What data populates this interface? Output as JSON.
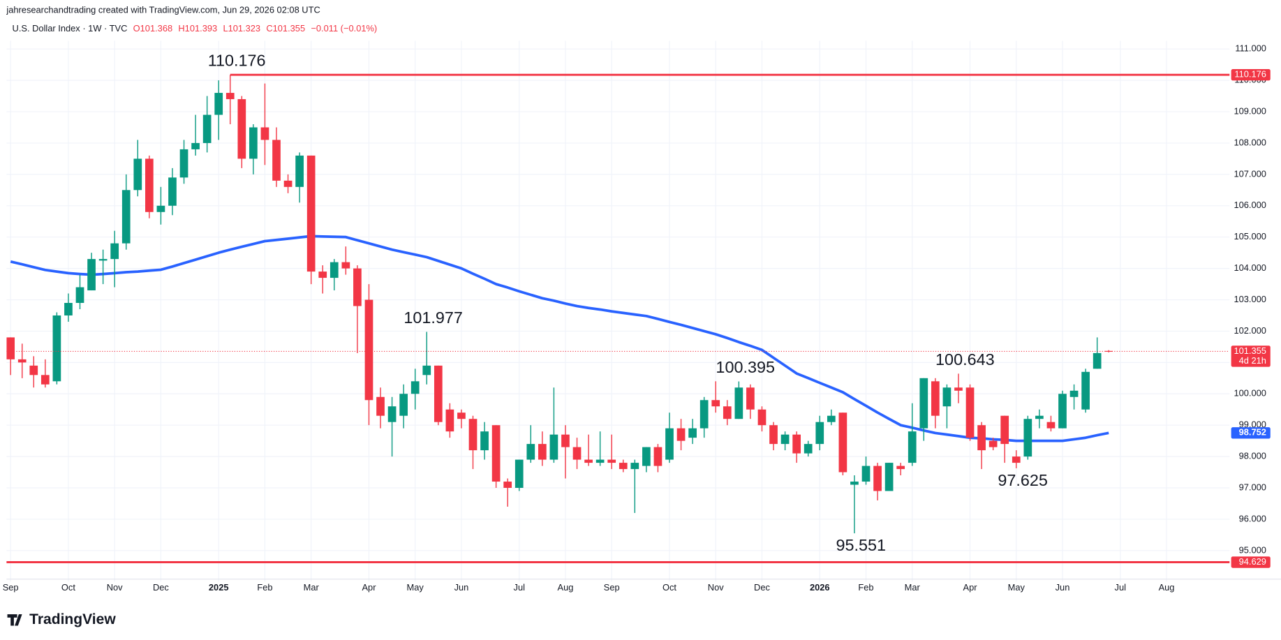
{
  "header": "jahresearchandtrading created with TradingView.com, Jun 29, 2026 02:08 UTC",
  "legend": {
    "symbol": "U.S. Dollar Index · 1W · TVC",
    "fields": [
      "O101.368",
      "H101.393",
      "L101.323",
      "C101.355",
      "−0.011 (−0.01%)"
    ]
  },
  "footer": "TradingView",
  "chart_data": {
    "type": "candlestick",
    "up_color": "#089981",
    "down_color": "#f23645",
    "grid": true,
    "ylim": [
      94.01,
      111.26
    ],
    "xlim": [
      -0.35,
      105.45
    ],
    "yticks": [
      {
        "value": 95,
        "label": "95.000"
      },
      {
        "value": 96,
        "label": "96.000"
      },
      {
        "value": 97,
        "label": "97.000"
      },
      {
        "value": 98,
        "label": "98.000"
      },
      {
        "value": 99,
        "label": "99.000"
      },
      {
        "value": 100,
        "label": "100.000"
      },
      {
        "value": 101,
        "label": "101.000"
      },
      {
        "value": 102,
        "label": "102.000"
      },
      {
        "value": 103,
        "label": "103.000"
      },
      {
        "value": 104,
        "label": "104.000"
      },
      {
        "value": 105,
        "label": "105.000"
      },
      {
        "value": 106,
        "label": "106.000"
      },
      {
        "value": 107,
        "label": "107.000"
      },
      {
        "value": 108,
        "label": "108.000"
      },
      {
        "value": 109,
        "label": "109.000"
      },
      {
        "value": 110,
        "label": "110.000"
      },
      {
        "value": 111,
        "label": "111.000"
      }
    ],
    "xticks": [
      {
        "value": 0,
        "label": "Sep"
      },
      {
        "value": 5,
        "label": "Oct"
      },
      {
        "value": 9,
        "label": "Nov"
      },
      {
        "value": 13,
        "label": "Dec"
      },
      {
        "value": 18,
        "label": "2025"
      },
      {
        "value": 22,
        "label": "Feb"
      },
      {
        "value": 26,
        "label": "Mar"
      },
      {
        "value": 31,
        "label": "Apr"
      },
      {
        "value": 35,
        "label": "May"
      },
      {
        "value": 39,
        "label": "Jun"
      },
      {
        "value": 44,
        "label": "Jul"
      },
      {
        "value": 48,
        "label": "Aug"
      },
      {
        "value": 52,
        "label": "Sep"
      },
      {
        "value": 57,
        "label": "Oct"
      },
      {
        "value": 61,
        "label": "Nov"
      },
      {
        "value": 65,
        "label": "Dec"
      },
      {
        "value": 70,
        "label": "2026"
      },
      {
        "value": 74,
        "label": "Feb"
      },
      {
        "value": 78,
        "label": "Mar"
      },
      {
        "value": 83,
        "label": "Apr"
      },
      {
        "value": 87,
        "label": "May"
      },
      {
        "value": 91,
        "label": "Jun"
      },
      {
        "value": 96,
        "label": "Jul"
      },
      {
        "value": 100,
        "label": "Aug"
      }
    ],
    "ohlc": [
      [
        101.8,
        101.8,
        100.6,
        101.1
      ],
      [
        101.1,
        101.6,
        100.5,
        101.0
      ],
      [
        100.9,
        101.2,
        100.2,
        100.6
      ],
      [
        100.6,
        101.1,
        100.2,
        100.3
      ],
      [
        100.4,
        102.6,
        100.3,
        102.5
      ],
      [
        102.5,
        103.2,
        102.3,
        102.9
      ],
      [
        102.9,
        103.8,
        102.7,
        103.4
      ],
      [
        103.3,
        104.5,
        103.3,
        104.3
      ],
      [
        104.25,
        104.6,
        103.5,
        104.3
      ],
      [
        104.3,
        105.2,
        103.4,
        104.8
      ],
      [
        104.8,
        107.0,
        104.6,
        106.5
      ],
      [
        106.5,
        108.1,
        106.3,
        107.5
      ],
      [
        107.5,
        107.6,
        105.6,
        105.8
      ],
      [
        105.8,
        106.6,
        105.4,
        106.0
      ],
      [
        106.0,
        107.2,
        105.7,
        106.9
      ],
      [
        106.9,
        108.1,
        106.7,
        107.8
      ],
      [
        107.8,
        108.9,
        107.6,
        108.0
      ],
      [
        108.0,
        109.5,
        107.7,
        108.9
      ],
      [
        108.9,
        110.0,
        108.1,
        109.6
      ],
      [
        109.6,
        110.176,
        108.6,
        109.4
      ],
      [
        109.4,
        109.5,
        107.2,
        107.5
      ],
      [
        107.5,
        108.6,
        107.0,
        108.5
      ],
      [
        108.5,
        109.9,
        107.3,
        108.1
      ],
      [
        108.1,
        108.5,
        106.6,
        106.8
      ],
      [
        106.8,
        107.0,
        106.4,
        106.6
      ],
      [
        106.6,
        107.7,
        106.1,
        107.6
      ],
      [
        107.6,
        107.6,
        103.5,
        103.9
      ],
      [
        103.9,
        104.1,
        103.2,
        103.7
      ],
      [
        103.7,
        104.3,
        103.3,
        104.2
      ],
      [
        104.2,
        104.7,
        103.8,
        104.0
      ],
      [
        104.0,
        104.1,
        101.3,
        102.8
      ],
      [
        103.0,
        103.5,
        99.0,
        99.8
      ],
      [
        99.9,
        100.2,
        98.9,
        99.3
      ],
      [
        99.1,
        99.9,
        98.0,
        99.6
      ],
      [
        99.3,
        100.3,
        98.9,
        100.0
      ],
      [
        100.0,
        100.8,
        99.5,
        100.4
      ],
      [
        100.6,
        101.977,
        100.3,
        100.9
      ],
      [
        100.9,
        100.9,
        99.0,
        99.1
      ],
      [
        99.5,
        99.7,
        98.6,
        98.8
      ],
      [
        99.4,
        99.5,
        98.9,
        99.2
      ],
      [
        99.2,
        99.3,
        97.6,
        98.2
      ],
      [
        98.2,
        99.1,
        97.9,
        98.8
      ],
      [
        99.0,
        99.0,
        97.0,
        97.2
      ],
      [
        97.2,
        97.3,
        96.4,
        97.0
      ],
      [
        97.0,
        97.9,
        96.9,
        97.9
      ],
      [
        97.9,
        99.0,
        97.8,
        98.4
      ],
      [
        98.4,
        98.8,
        97.7,
        97.9
      ],
      [
        97.9,
        100.2,
        97.8,
        98.7
      ],
      [
        98.7,
        99.0,
        97.3,
        98.3
      ],
      [
        98.3,
        98.6,
        97.6,
        97.9
      ],
      [
        97.9,
        98.7,
        97.7,
        97.8
      ],
      [
        97.8,
        98.8,
        97.7,
        97.9
      ],
      [
        97.9,
        98.7,
        97.6,
        97.8
      ],
      [
        97.8,
        97.9,
        97.5,
        97.6
      ],
      [
        97.6,
        97.9,
        96.2,
        97.8
      ],
      [
        97.7,
        98.3,
        97.5,
        98.3
      ],
      [
        98.3,
        98.4,
        97.5,
        97.7
      ],
      [
        97.9,
        99.4,
        97.8,
        98.9
      ],
      [
        98.9,
        99.2,
        98.2,
        98.5
      ],
      [
        98.6,
        99.2,
        98.4,
        98.9
      ],
      [
        98.9,
        99.9,
        98.6,
        99.8
      ],
      [
        99.8,
        100.4,
        99.4,
        99.6
      ],
      [
        99.6,
        99.8,
        99.0,
        99.2
      ],
      [
        99.2,
        100.395,
        99.2,
        100.2
      ],
      [
        100.2,
        100.3,
        99.2,
        99.5
      ],
      [
        99.5,
        99.6,
        98.8,
        99.0
      ],
      [
        99.0,
        99.1,
        98.2,
        98.4
      ],
      [
        98.4,
        98.8,
        98.2,
        98.7
      ],
      [
        98.7,
        98.8,
        97.8,
        98.1
      ],
      [
        98.1,
        98.5,
        98.0,
        98.4
      ],
      [
        98.4,
        99.3,
        98.2,
        99.1
      ],
      [
        99.1,
        99.5,
        99.0,
        99.3
      ],
      [
        99.4,
        99.4,
        97.4,
        97.5
      ],
      [
        97.1,
        97.4,
        95.551,
        97.2
      ],
      [
        97.2,
        98.0,
        97.1,
        97.7
      ],
      [
        97.7,
        97.8,
        96.6,
        96.9
      ],
      [
        96.9,
        97.8,
        96.9,
        97.8
      ],
      [
        97.7,
        97.8,
        97.4,
        97.6
      ],
      [
        97.8,
        99.7,
        97.7,
        98.8
      ],
      [
        98.9,
        100.5,
        98.5,
        100.5
      ],
      [
        100.4,
        100.5,
        98.9,
        99.3
      ],
      [
        99.6,
        100.3,
        98.9,
        100.2
      ],
      [
        100.2,
        100.643,
        99.7,
        100.1
      ],
      [
        100.2,
        100.3,
        98.5,
        98.6
      ],
      [
        99.0,
        99.1,
        97.6,
        98.2
      ],
      [
        98.5,
        98.6,
        98.2,
        98.3
      ],
      [
        99.3,
        99.3,
        97.8,
        98.4
      ],
      [
        98.0,
        98.2,
        97.625,
        97.8
      ],
      [
        98.0,
        99.3,
        97.9,
        99.2
      ],
      [
        99.2,
        99.5,
        98.9,
        99.3
      ],
      [
        99.1,
        99.3,
        98.8,
        98.9
      ],
      [
        98.9,
        100.1,
        98.9,
        100.0
      ],
      [
        99.9,
        100.3,
        99.5,
        100.1
      ],
      [
        99.5,
        100.8,
        99.4,
        100.7
      ],
      [
        100.8,
        101.8,
        100.8,
        101.3
      ],
      [
        101.368,
        101.393,
        101.323,
        101.355
      ]
    ],
    "overlay": {
      "color": "#2962ff",
      "values": [
        104.22,
        104.13,
        104.04,
        103.95,
        103.9,
        103.85,
        103.82,
        103.8,
        103.82,
        103.85,
        103.88,
        103.9,
        103.93,
        103.96,
        104.06,
        104.17,
        104.28,
        104.39,
        104.5,
        104.6,
        104.69,
        104.78,
        104.87,
        104.91,
        104.95,
        104.99,
        105.03,
        105.02,
        105.01,
        105.0,
        104.9,
        104.8,
        104.7,
        104.6,
        104.52,
        104.44,
        104.36,
        104.24,
        104.12,
        104.0,
        103.83,
        103.67,
        103.5,
        103.39,
        103.27,
        103.16,
        103.05,
        102.97,
        102.88,
        102.8,
        102.74,
        102.69,
        102.63,
        102.58,
        102.53,
        102.48,
        102.39,
        102.29,
        102.2,
        102.1,
        102.0,
        101.9,
        101.78,
        101.65,
        101.53,
        101.4,
        101.15,
        100.9,
        100.65,
        100.5,
        100.35,
        100.2,
        100.05,
        99.83,
        99.62,
        99.4,
        99.2,
        99.0,
        98.92,
        98.83,
        98.75,
        98.7,
        98.65,
        98.6,
        98.58,
        98.55,
        98.53,
        98.5,
        98.5,
        98.5,
        98.5,
        98.5,
        98.55,
        98.6,
        98.68,
        98.752
      ]
    },
    "levels": [
      {
        "value": 110.176,
        "label": "110.176",
        "color": "#f23645"
      },
      {
        "value": 94.629,
        "label": "94.629",
        "color": "#f23645"
      }
    ],
    "last_price": {
      "value": 101.355,
      "label": "101.355",
      "countdown": "4d 21h",
      "color": "#f23645"
    },
    "annotations": [
      {
        "value": 110.176,
        "label": "110.176"
      },
      {
        "value": 101.977,
        "label": "101.977"
      },
      {
        "value": 100.395,
        "label": "100.395"
      },
      {
        "value": 100.643,
        "label": "100.643"
      },
      {
        "value": 97.625,
        "label": "97.625"
      },
      {
        "value": 95.551,
        "label": "95.551"
      }
    ]
  }
}
